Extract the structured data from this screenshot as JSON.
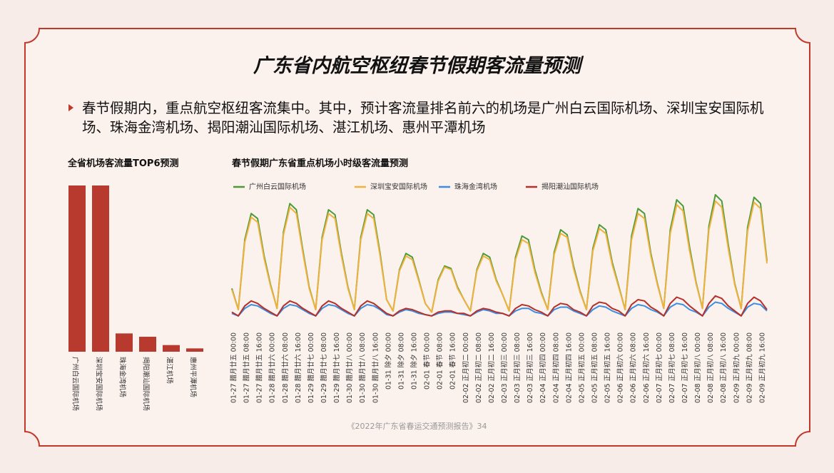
{
  "header": {
    "title": "广东省内航空枢纽春节假期客流量预测"
  },
  "bullet": "春节假期内，重点航空枢纽客流集中。其中，预计客流量排名前六的机场是广州白云国际机场、深圳宝安国际机场、珠海金湾机场、揭阳潮汕国际机场、湛江机场、惠州平潭机场",
  "footer": "《2022年广东省春运交通预测报告》34",
  "chart_data": [
    {
      "type": "bar",
      "title": "全省机场客流量TOP6预测",
      "categories": [
        "广州白云国际机场",
        "深圳宝安国际机场",
        "珠海金湾机场",
        "揭阳潮汕国际机场",
        "湛江机场",
        "惠州平潭机场"
      ],
      "values": [
        100,
        100,
        11,
        9,
        4,
        2
      ],
      "color": "#b83a2e"
    },
    {
      "type": "line",
      "title": "春节假期广东省重点机场小时级客流量预测",
      "categories": [
        "01-27 腊月廿五 00:00",
        null,
        "01-27 腊月廿五 08:00",
        null,
        "01-27 腊月廿五 16:00",
        null,
        "01-28 腊月廿六 00:00",
        null,
        "01-28 腊月廿六 08:00",
        null,
        "01-28 腊月廿六 16:00",
        null,
        "01-29 腊月廿七 00:00",
        null,
        "01-29 腊月廿七 08:00",
        null,
        "01-29 腊月廿七 16:00",
        null,
        "01-30 腊月廿八 00:00",
        null,
        "01-30 腊月廿八 08:00",
        null,
        "01-30 腊月廿八 16:00",
        null,
        "01-31 除夕 00:00",
        null,
        "01-31 除夕 08:00",
        null,
        "01-31 除夕 16:00",
        null,
        "02-01 春节 00:00",
        null,
        "02-01 春节 08:00",
        null,
        "02-01 春节 16:00",
        null,
        "02-02 正月初二 00:00",
        null,
        "02-02 正月初二 08:00",
        null,
        "02-02 正月初二 16:00",
        null,
        "02-03 正月初三 00:00",
        null,
        "02-03 正月初三 08:00",
        null,
        "02-03 正月初三 16:00",
        null,
        "02-04 正月初四 00:00",
        null,
        "02-04 正月初四 08:00",
        null,
        "02-04 正月初四 16:00",
        null,
        "02-05 正月初五 00:00",
        null,
        "02-05 正月初五 08:00",
        null,
        "02-05 正月初五 16:00",
        null,
        "02-06 正月初六 00:00",
        null,
        "02-06 正月初六 08:00",
        null,
        "02-06 正月初六 16:00",
        null,
        "02-07 正月初七 00:00",
        null,
        "02-07 正月初七 08:00",
        null,
        "02-07 正月初七 16:00",
        null,
        "02-08 正月初八 00:00",
        null,
        "02-08 正月初八 08:00",
        null,
        "02-08 正月初八 16:00",
        null,
        "02-09 正月初九 00:00",
        null,
        "02-09 正月初九 08:00",
        null,
        "02-09 正月初九 16:00",
        null
      ],
      "series": [
        {
          "name": "广州白云国际机场",
          "color": "#4a9a3a",
          "values": [
            25,
            8,
            64,
            85,
            81,
            51,
            28,
            9,
            70,
            93,
            88,
            56,
            26,
            8,
            66,
            88,
            84,
            53,
            26,
            8,
            66,
            88,
            84,
            53,
            16,
            7,
            40,
            53,
            50,
            32,
            13,
            6,
            32,
            43,
            41,
            26,
            16,
            7,
            40,
            53,
            50,
            32,
            20,
            7,
            50,
            67,
            64,
            40,
            22,
            8,
            54,
            72,
            68,
            43,
            23,
            8,
            57,
            76,
            72,
            46,
            27,
            8,
            67,
            89,
            85,
            53,
            29,
            9,
            72,
            96,
            91,
            58,
            30,
            9,
            75,
            100,
            95,
            60,
            29,
            9,
            74,
            98,
            93,
            47
          ]
        },
        {
          "name": "深圳宝安国际机场",
          "color": "#f0b23c",
          "values": [
            24,
            8,
            62,
            82,
            78,
            49,
            27,
            9,
            68,
            90,
            85,
            54,
            25,
            8,
            64,
            85,
            81,
            51,
            25,
            8,
            64,
            85,
            81,
            51,
            16,
            7,
            39,
            51,
            48,
            31,
            13,
            6,
            31,
            42,
            40,
            25,
            16,
            7,
            39,
            51,
            48,
            31,
            20,
            7,
            48,
            64,
            61,
            38,
            21,
            8,
            52,
            69,
            66,
            41,
            22,
            8,
            55,
            73,
            69,
            44,
            26,
            8,
            64,
            85,
            81,
            51,
            28,
            9,
            69,
            92,
            87,
            55,
            29,
            9,
            72,
            95,
            90,
            57,
            28,
            9,
            71,
            94,
            89,
            45
          ]
        },
        {
          "name": "珠海金湾机场",
          "color": "#3b8ee0",
          "values": [
            5,
            3,
            9,
            12,
            11,
            8,
            5,
            3,
            9,
            12,
            11,
            8,
            5,
            3,
            9,
            12,
            11,
            8,
            5,
            3,
            9,
            12,
            11,
            8,
            4,
            3,
            6,
            8,
            7,
            5,
            4,
            3,
            5,
            6,
            6,
            5,
            4,
            3,
            6,
            8,
            7,
            5,
            5,
            3,
            7,
            9,
            9,
            6,
            5,
            3,
            8,
            10,
            10,
            7,
            5,
            3,
            8,
            11,
            10,
            7,
            5,
            3,
            9,
            12,
            11,
            8,
            6,
            3,
            10,
            13,
            12,
            8,
            6,
            3,
            10,
            14,
            13,
            9,
            6,
            3,
            10,
            13,
            12,
            7
          ]
        },
        {
          "name": "揭阳潮汕国际机场",
          "color": "#b5302a",
          "values": [
            6,
            3,
            11,
            15,
            13,
            9,
            6,
            3,
            11,
            15,
            13,
            9,
            6,
            3,
            11,
            15,
            13,
            9,
            6,
            3,
            11,
            15,
            13,
            9,
            5,
            3,
            7,
            9,
            8,
            6,
            4,
            3,
            6,
            7,
            7,
            5,
            5,
            3,
            7,
            9,
            8,
            6,
            5,
            3,
            9,
            12,
            11,
            8,
            6,
            3,
            10,
            13,
            12,
            8,
            6,
            3,
            11,
            14,
            13,
            9,
            7,
            3,
            12,
            16,
            15,
            10,
            7,
            3,
            13,
            18,
            16,
            11,
            7,
            3,
            13,
            19,
            17,
            11,
            7,
            3,
            13,
            18,
            15,
            8
          ]
        }
      ]
    }
  ]
}
